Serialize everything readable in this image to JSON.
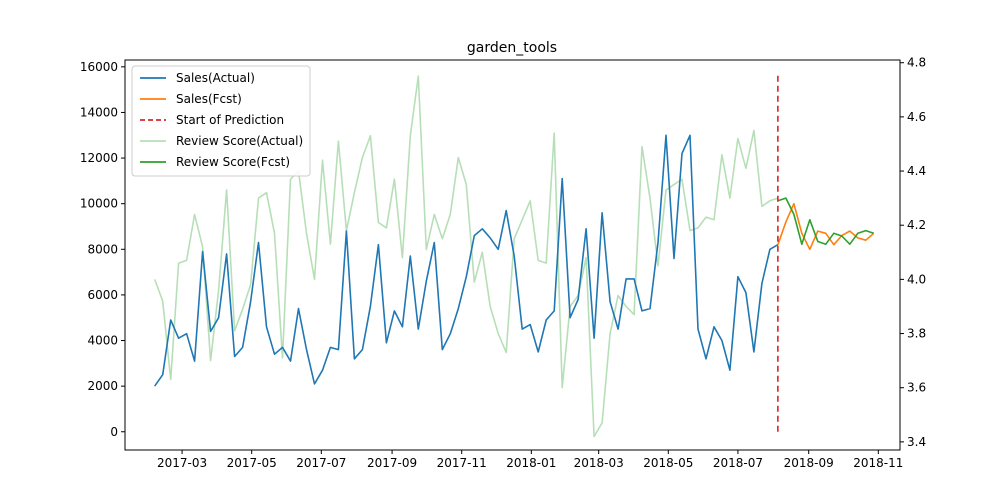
{
  "chart_data": {
    "type": "line",
    "title": "garden_tools",
    "xlabel": "",
    "ylabel": "",
    "y2label": "",
    "x_ticks": [
      "2017-03",
      "2017-05",
      "2017-07",
      "2017-09",
      "2017-11",
      "2018-01",
      "2018-03",
      "2018-05",
      "2018-07",
      "2018-09",
      "2018-11"
    ],
    "y_ticks": [
      0,
      2000,
      4000,
      6000,
      8000,
      10000,
      12000,
      14000,
      16000
    ],
    "y2_ticks": [
      3.4,
      3.6,
      3.8,
      4.0,
      4.2,
      4.4,
      4.6,
      4.8
    ],
    "xlim": [
      "2017-01-10",
      "2018-11-20"
    ],
    "ylim": [
      -800,
      16300
    ],
    "y2lim": [
      3.37,
      4.81
    ],
    "legend_position": "upper-left",
    "colors": {
      "sales_actual": "#1f77b4",
      "sales_fcst": "#ff7f0e",
      "start_line": "#d62728",
      "review_actual": "#b7dfb7",
      "review_fcst": "#2ca02c"
    },
    "prediction_start": "2018-08-05",
    "series": [
      {
        "name": "Sales(Actual)",
        "axis": "left",
        "x": [
          "2017-02-05",
          "2017-02-12",
          "2017-02-19",
          "2017-02-26",
          "2017-03-05",
          "2017-03-12",
          "2017-03-19",
          "2017-03-26",
          "2017-04-02",
          "2017-04-09",
          "2017-04-16",
          "2017-04-23",
          "2017-04-30",
          "2017-05-07",
          "2017-05-14",
          "2017-05-21",
          "2017-05-28",
          "2017-06-04",
          "2017-06-11",
          "2017-06-18",
          "2017-06-25",
          "2017-07-02",
          "2017-07-09",
          "2017-07-16",
          "2017-07-23",
          "2017-07-30",
          "2017-08-06",
          "2017-08-13",
          "2017-08-20",
          "2017-08-27",
          "2017-09-03",
          "2017-09-10",
          "2017-09-17",
          "2017-09-24",
          "2017-10-01",
          "2017-10-08",
          "2017-10-15",
          "2017-10-22",
          "2017-10-29",
          "2017-11-05",
          "2017-11-12",
          "2017-11-19",
          "2017-11-26",
          "2017-12-03",
          "2017-12-10",
          "2017-12-17",
          "2017-12-24",
          "2017-12-31",
          "2018-01-07",
          "2018-01-14",
          "2018-01-21",
          "2018-01-28",
          "2018-02-04",
          "2018-02-11",
          "2018-02-18",
          "2018-02-25",
          "2018-03-04",
          "2018-03-11",
          "2018-03-18",
          "2018-03-25",
          "2018-04-01",
          "2018-04-08",
          "2018-04-15",
          "2018-04-22",
          "2018-04-29",
          "2018-05-06",
          "2018-05-13",
          "2018-05-20",
          "2018-05-27",
          "2018-06-03",
          "2018-06-10",
          "2018-06-17",
          "2018-06-24",
          "2018-07-01",
          "2018-07-08",
          "2018-07-15",
          "2018-07-22",
          "2018-07-29",
          "2018-08-05"
        ],
        "values": [
          2000,
          2500,
          4900,
          4100,
          4300,
          3100,
          7900,
          4400,
          5000,
          7800,
          3300,
          3700,
          5700,
          8300,
          4600,
          3400,
          3700,
          3100,
          5400,
          3600,
          2100,
          2700,
          3700,
          3600,
          8800,
          3200,
          3600,
          5500,
          8200,
          3900,
          5300,
          4600,
          7700,
          4500,
          6600,
          8300,
          3600,
          4300,
          5400,
          6800,
          8600,
          8900,
          8500,
          8000,
          9700,
          7700,
          4500,
          4700,
          3500,
          4900,
          5300,
          11100,
          5000,
          5800,
          8900,
          4100,
          9600,
          5700,
          4500,
          6700,
          6700,
          5300,
          5400,
          8300,
          13000,
          7600,
          12200,
          13000,
          4500,
          3200,
          4600,
          4000,
          2700,
          6800,
          6100,
          3500,
          6500,
          8000,
          8200
        ]
      },
      {
        "name": "Sales(Fcst)",
        "axis": "left",
        "x": [
          "2018-08-05",
          "2018-08-12",
          "2018-08-19",
          "2018-08-26",
          "2018-09-02",
          "2018-09-09",
          "2018-09-16",
          "2018-09-23",
          "2018-09-30",
          "2018-10-07",
          "2018-10-14",
          "2018-10-21",
          "2018-10-28"
        ],
        "values": [
          8200,
          9200,
          10000,
          8700,
          8000,
          8800,
          8700,
          8200,
          8600,
          8800,
          8500,
          8400,
          8700
        ]
      },
      {
        "name": "Review Score(Actual)",
        "axis": "right",
        "x": [
          "2017-02-05",
          "2017-02-12",
          "2017-02-19",
          "2017-02-26",
          "2017-03-05",
          "2017-03-12",
          "2017-03-19",
          "2017-03-26",
          "2017-04-02",
          "2017-04-09",
          "2017-04-16",
          "2017-04-23",
          "2017-04-30",
          "2017-05-07",
          "2017-05-14",
          "2017-05-21",
          "2017-05-28",
          "2017-06-04",
          "2017-06-11",
          "2017-06-18",
          "2017-06-25",
          "2017-07-02",
          "2017-07-09",
          "2017-07-16",
          "2017-07-23",
          "2017-07-30",
          "2017-08-06",
          "2017-08-13",
          "2017-08-20",
          "2017-08-27",
          "2017-09-03",
          "2017-09-10",
          "2017-09-17",
          "2017-09-24",
          "2017-10-01",
          "2017-10-08",
          "2017-10-15",
          "2017-10-22",
          "2017-10-29",
          "2017-11-05",
          "2017-11-12",
          "2017-11-19",
          "2017-11-26",
          "2017-12-03",
          "2017-12-10",
          "2017-12-17",
          "2017-12-24",
          "2017-12-31",
          "2018-01-07",
          "2018-01-14",
          "2018-01-21",
          "2018-01-28",
          "2018-02-04",
          "2018-02-11",
          "2018-02-18",
          "2018-02-25",
          "2018-03-04",
          "2018-03-11",
          "2018-03-18",
          "2018-03-25",
          "2018-04-01",
          "2018-04-08",
          "2018-04-15",
          "2018-04-22",
          "2018-04-29",
          "2018-05-06",
          "2018-05-13",
          "2018-05-20",
          "2018-05-27",
          "2018-06-03",
          "2018-06-10",
          "2018-06-17",
          "2018-06-24",
          "2018-07-01",
          "2018-07-08",
          "2018-07-15",
          "2018-07-22",
          "2018-07-29",
          "2018-08-05"
        ],
        "values": [
          4.0,
          3.92,
          3.63,
          4.06,
          4.07,
          4.24,
          4.12,
          3.7,
          3.96,
          4.33,
          3.81,
          3.89,
          3.98,
          4.3,
          4.32,
          4.17,
          3.71,
          4.37,
          4.4,
          4.17,
          4.0,
          4.44,
          4.13,
          4.51,
          4.18,
          4.32,
          4.45,
          4.53,
          4.21,
          4.19,
          4.37,
          4.08,
          4.53,
          4.75,
          4.11,
          4.24,
          4.15,
          4.24,
          4.45,
          4.35,
          3.99,
          4.1,
          3.9,
          3.8,
          3.73,
          4.15,
          4.22,
          4.29,
          4.07,
          4.06,
          4.54,
          3.6,
          3.9,
          3.94,
          4.08,
          3.42,
          3.47,
          3.8,
          3.94,
          3.9,
          3.87,
          4.49,
          4.3,
          4.05,
          4.33,
          4.35,
          4.37,
          4.18,
          4.19,
          4.23,
          4.22,
          4.46,
          4.3,
          4.52,
          4.41,
          4.55,
          4.27,
          4.29,
          4.3
        ]
      },
      {
        "name": "Review Score(Fcst)",
        "axis": "right",
        "x": [
          "2018-08-05",
          "2018-08-12",
          "2018-08-19",
          "2018-08-26",
          "2018-09-02",
          "2018-09-09",
          "2018-09-16",
          "2018-09-23",
          "2018-09-30",
          "2018-10-07",
          "2018-10-14",
          "2018-10-21",
          "2018-10-28"
        ],
        "values": [
          4.29,
          4.3,
          4.24,
          4.13,
          4.22,
          4.14,
          4.13,
          4.17,
          4.16,
          4.13,
          4.17,
          4.18,
          4.17
        ]
      }
    ]
  }
}
